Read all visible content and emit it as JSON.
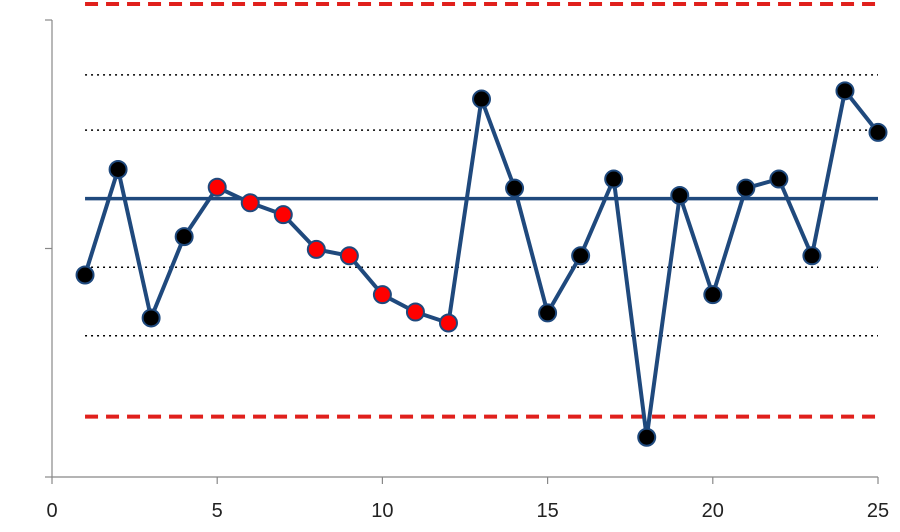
{
  "chart_data": {
    "type": "line",
    "xlim": [
      0,
      25
    ],
    "ylim": [
      0,
      100
    ],
    "x_ticks": [
      {
        "value": 0,
        "label": "0"
      },
      {
        "value": 5,
        "label": "5"
      },
      {
        "value": 10,
        "label": "10"
      },
      {
        "value": 15,
        "label": "15"
      },
      {
        "value": 20,
        "label": "20"
      },
      {
        "value": 25,
        "label": "25"
      }
    ],
    "y_ticks": [
      0,
      50,
      100
    ],
    "x": [
      1,
      2,
      3,
      4,
      5,
      6,
      7,
      8,
      9,
      10,
      11,
      12,
      13,
      14,
      15,
      16,
      17,
      18,
      19,
      20,
      21,
      22,
      23,
      24,
      25
    ],
    "y": [
      44.2,
      67.3,
      34.8,
      52.6,
      63.4,
      60.0,
      57.4,
      49.8,
      48.4,
      39.9,
      36.1,
      33.7,
      82.7,
      63.2,
      35.9,
      48.4,
      65.2,
      8.7,
      61.6,
      39.9,
      63.2,
      65.2,
      48.4,
      84.5,
      75.4
    ],
    "highlight_points": [
      5,
      6,
      7,
      8,
      9,
      10,
      11,
      12
    ],
    "center_line": 60.9,
    "control_limits": [
      13.2,
      103.5
    ],
    "zone_lines": [
      30.9,
      45.9,
      75.9,
      88.0
    ],
    "grid": false,
    "legend": "none",
    "colors": {
      "series": "#1f497d",
      "point_default": "#000000",
      "point_highlight": "#ff0000",
      "center_line": "#1f497d",
      "control_limit": "#e0201c",
      "zone_line": "#000000",
      "axis": "#888888"
    }
  }
}
